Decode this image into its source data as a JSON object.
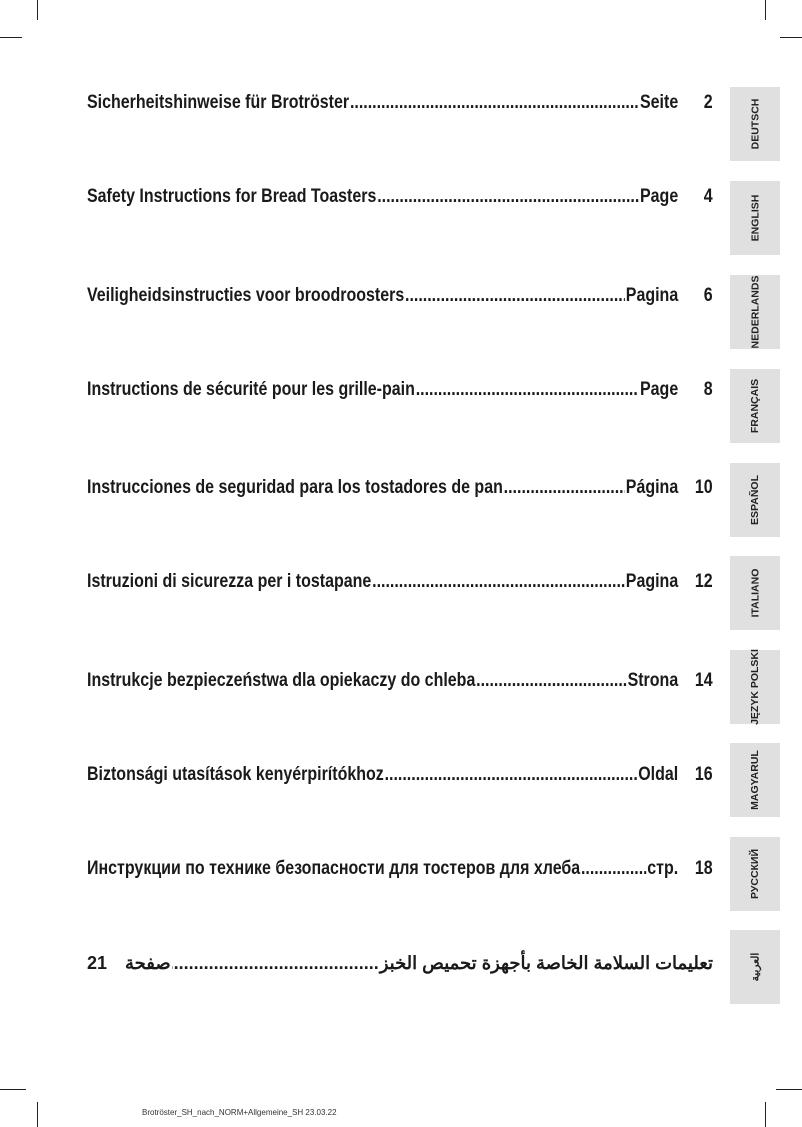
{
  "toc": [
    {
      "title": "Sicherheitshinweise für Brotröster",
      "page_label": "Seite",
      "page": "2",
      "tab": "DEUTSCH"
    },
    {
      "title": "Safety Instructions for Bread Toasters",
      "page_label": "Page",
      "page": "4",
      "tab": "ENGLISH"
    },
    {
      "title": "Veiligheidsinstructies voor broodroosters",
      "page_label": "Pagina",
      "page": "6",
      "tab": "NEDERLANDS"
    },
    {
      "title": "Instructions de sécurité pour les grille-pain",
      "page_label": "Page",
      "page": "8",
      "tab": "FRANÇAIS"
    },
    {
      "title": "Instrucciones de seguridad para los tostadores de pan",
      "page_label": "Página",
      "page": "10",
      "tab": "ESPAÑOL"
    },
    {
      "title": "Istruzioni di sicurezza per i tostapane",
      "page_label": "Pagina",
      "page": "12",
      "tab": "ITALIANO"
    },
    {
      "title": "Instrukcje bezpieczeństwa dla opiekaczy do chleba",
      "page_label": "Strona",
      "page": "14",
      "tab": "JĘZYK POLSKI"
    },
    {
      "title": "Biztonsági utasítások kenyérpirítókhoz",
      "page_label": "Oldal",
      "page": "16",
      "tab": "MAGYARUL"
    },
    {
      "title": "Инструкции по технике безопасности для тостеров для хлеба",
      "page_label": "стр.",
      "page": "18",
      "tab": "РУССКИЙ"
    },
    {
      "title": "تعليمات السلامة الخاصة بأجهزة تحميص الخبز",
      "page_label": "صفحة",
      "page": "21",
      "tab": "العربية"
    }
  ],
  "footer": "Brotröster_SH_nach_NORM+Allgemeine_SH  23.03.22"
}
